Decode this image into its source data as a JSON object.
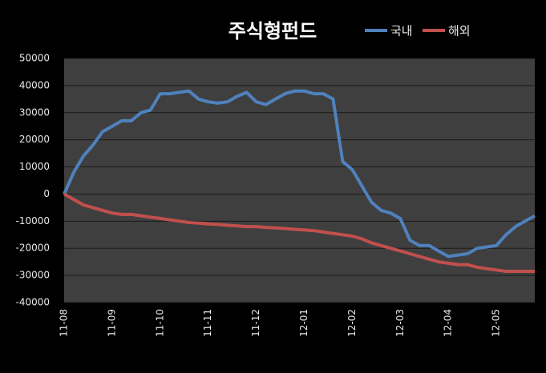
{
  "chart_data": {
    "type": "line",
    "title": "주식형펀드",
    "categories": [
      "11-08",
      null,
      null,
      null,
      null,
      "11-09",
      null,
      null,
      null,
      null,
      "11-10",
      null,
      null,
      null,
      null,
      "11-11",
      null,
      null,
      null,
      null,
      "11-12",
      null,
      null,
      null,
      null,
      "12-01",
      null,
      null,
      null,
      null,
      "12-02",
      null,
      null,
      null,
      null,
      "12-03",
      null,
      null,
      null,
      null,
      "12-04",
      null,
      null,
      null,
      null,
      "12-05",
      null,
      null,
      null,
      null
    ],
    "series": [
      {
        "name": "국내",
        "color": "#4f81bd",
        "values": [
          0,
          8000,
          14000,
          18000,
          23000,
          25000,
          27000,
          27000,
          30000,
          31000,
          37000,
          37000,
          37500,
          38000,
          35000,
          34000,
          33500,
          34000,
          36000,
          37500,
          34000,
          33000,
          35000,
          37000,
          38000,
          38000,
          37000,
          37000,
          35000,
          12000,
          9000,
          3000,
          -3000,
          -6000,
          -7000,
          -9000,
          -17000,
          -19000,
          -19000,
          -21000,
          -23000,
          -22500,
          -22000,
          -20000,
          -19500,
          -19000,
          -15000,
          -12000,
          -10000,
          -8000
        ]
      },
      {
        "name": "해외",
        "color": "#c0504d",
        "values": [
          0,
          -2000,
          -4000,
          -5000,
          -6000,
          -7000,
          -7500,
          -7500,
          -8000,
          -8500,
          -9000,
          -9500,
          -10000,
          -10500,
          -10700,
          -11000,
          -11200,
          -11500,
          -11700,
          -12000,
          -12000,
          -12300,
          -12500,
          -12700,
          -13000,
          -13200,
          -13500,
          -14000,
          -14500,
          -15000,
          -15500,
          -16500,
          -18000,
          -19000,
          -20000,
          -21000,
          -22000,
          -23000,
          -24000,
          -25000,
          -25500,
          -26000,
          -26000,
          -27000,
          -27500,
          -28000,
          -28500,
          -28500,
          -28500,
          -28500
        ]
      }
    ],
    "ylim": [
      -40000,
      50000
    ],
    "yticks": [
      -40000,
      -30000,
      -20000,
      -10000,
      0,
      10000,
      20000,
      30000,
      40000,
      50000
    ],
    "grid": true
  }
}
